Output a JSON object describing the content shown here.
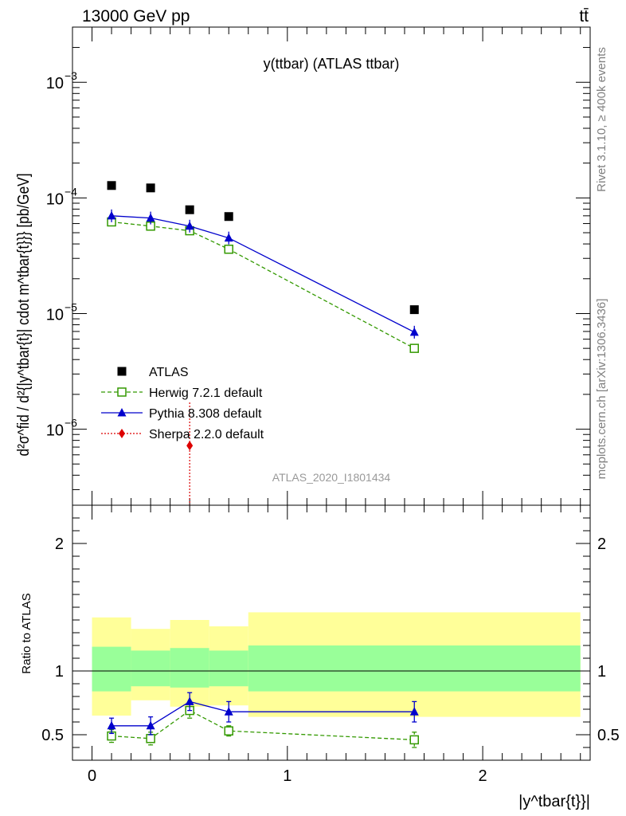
{
  "header": {
    "left": "13000 GeV pp",
    "right": "tt̄"
  },
  "title": "y(ttbar) (ATLAS ttbar)",
  "watermark": "ATLAS_2020_I1801434",
  "side_labels": {
    "top": "Rivet 3.1.10, ≥ 400k events",
    "bottom": "mcplots.cern.ch [arXiv:1306.3436]"
  },
  "ylabel_main": "d²σ^fid / d²{|y^tbar{t}| cdot m^tbar{t}}} [pb/GeV]",
  "ylabel_ratio": "Ratio to ATLAS",
  "xlabel": "|y^tbar{t}}|",
  "legend": [
    {
      "label": "ATLAS",
      "color": "#000000",
      "marker": "square-filled"
    },
    {
      "label": "Herwig 7.2.1 default",
      "color": "#339900",
      "marker": "square-open"
    },
    {
      "label": "Pythia 8.308 default",
      "color": "#0000cc",
      "marker": "triangle"
    },
    {
      "label": "Sherpa 2.2.0 default",
      "color": "#dd0000",
      "marker": "diamond"
    }
  ],
  "chart_data": [
    {
      "type": "scatter",
      "yscale": "log",
      "xlim": [
        -0.1,
        2.55
      ],
      "ylim": [
        2.2e-07,
        0.003
      ],
      "ytick_labels": [
        {
          "value": 1e-06,
          "mant": "10",
          "exp": "−6"
        },
        {
          "value": 1e-05,
          "mant": "10",
          "exp": "−5"
        },
        {
          "value": 0.0001,
          "mant": "10",
          "exp": "−4"
        },
        {
          "value": 0.001,
          "mant": "10",
          "exp": "−3"
        }
      ],
      "series": [
        {
          "name": "ATLAS",
          "x": [
            0.1,
            0.3,
            0.5,
            0.7,
            1.65
          ],
          "y": [
            0.000128,
            0.000122,
            7.9e-05,
            6.9e-05,
            1.08e-05
          ]
        },
        {
          "name": "Herwig 7.2.1 default",
          "x": [
            0.1,
            0.3,
            0.5,
            0.7,
            1.65
          ],
          "y": [
            6.2e-05,
            5.7e-05,
            5.2e-05,
            3.6e-05,
            5e-06
          ]
        },
        {
          "name": "Pythia 8.308 default",
          "x": [
            0.1,
            0.3,
            0.5,
            0.7,
            1.65
          ],
          "y": [
            7e-05,
            6.7e-05,
            5.7e-05,
            4.5e-05,
            6.9e-06
          ]
        },
        {
          "name": "Sherpa 2.2.0 default",
          "x": [
            0.5
          ],
          "y": [
            7.2e-07
          ]
        }
      ]
    },
    {
      "type": "scatter",
      "xlim": [
        -0.1,
        2.55
      ],
      "ylim": [
        0.3,
        2.3
      ],
      "xticks": [
        0,
        1,
        2
      ],
      "xtick_labels": [
        "0",
        "1",
        "2"
      ],
      "yticks": [
        0.5,
        1,
        2
      ],
      "ytick_labels": [
        "0.5",
        "1",
        "2"
      ],
      "bands": {
        "edges": [
          0,
          0.2,
          0.4,
          0.6,
          0.8,
          2.5
        ],
        "inner_low": [
          0.84,
          0.88,
          0.87,
          0.88,
          0.84
        ],
        "inner_high": [
          1.19,
          1.16,
          1.18,
          1.16,
          1.2
        ],
        "outer_low": [
          0.65,
          0.77,
          0.72,
          0.73,
          0.64
        ],
        "outer_high": [
          1.42,
          1.33,
          1.4,
          1.35,
          1.46
        ]
      },
      "series": [
        {
          "name": "Herwig 7.2.1 default",
          "x": [
            0.1,
            0.3,
            0.5,
            0.7,
            1.65
          ],
          "y": [
            0.49,
            0.47,
            0.69,
            0.53,
            0.46
          ],
          "err": [
            0.05,
            0.05,
            0.06,
            0.04,
            0.06
          ]
        },
        {
          "name": "Pythia 8.308 default",
          "x": [
            0.1,
            0.3,
            0.5,
            0.7,
            1.65
          ],
          "y": [
            0.57,
            0.57,
            0.76,
            0.68,
            0.68
          ],
          "err": [
            0.06,
            0.07,
            0.07,
            0.08,
            0.08
          ]
        }
      ]
    }
  ]
}
